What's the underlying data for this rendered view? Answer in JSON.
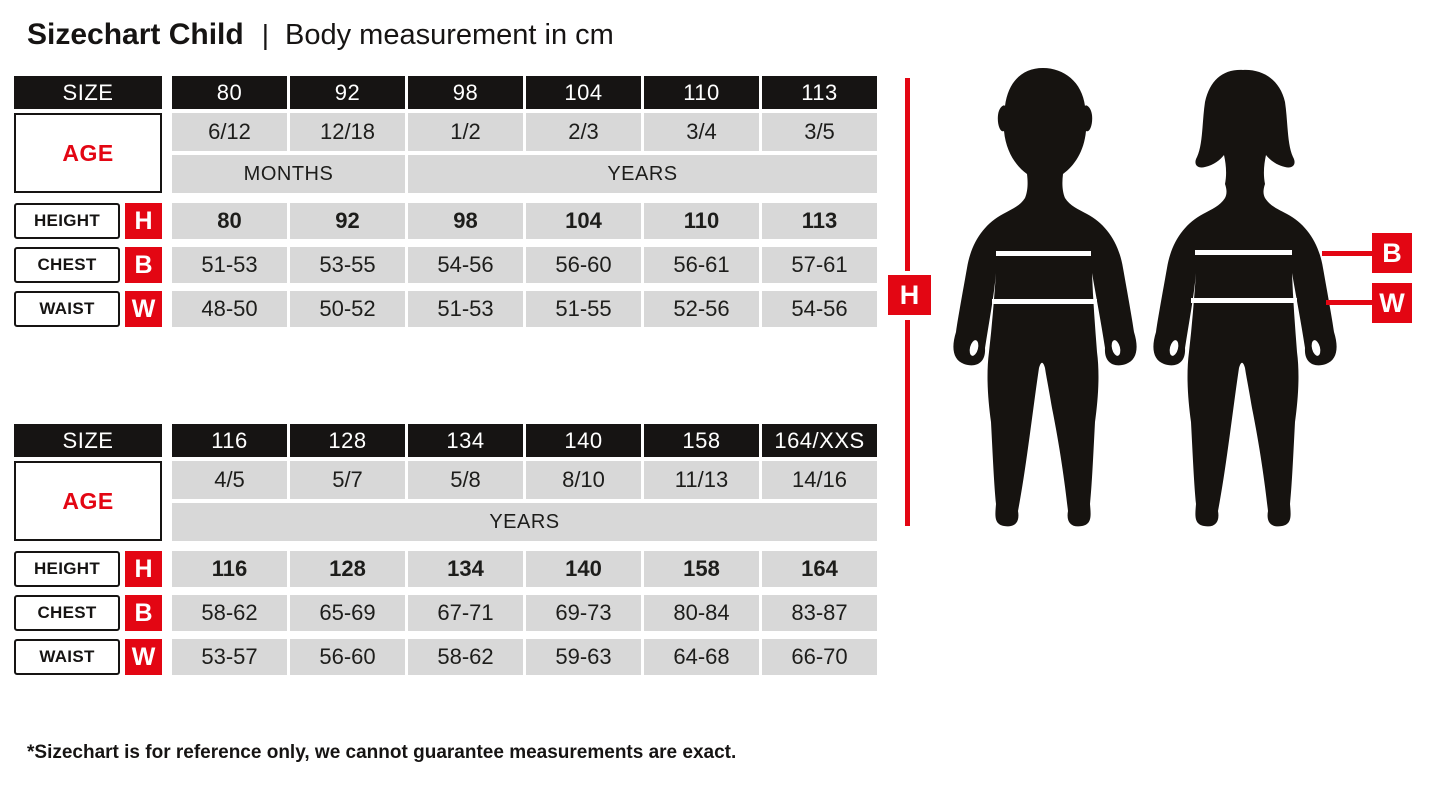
{
  "page": {
    "title": "Sizechart Child",
    "separator": "|",
    "subtitle": "Body measurement in cm",
    "footnote": "*Sizechart is for reference only, we cannot guarantee measurements are exact."
  },
  "colors": {
    "accent_red": "#e30613",
    "header_black": "#161413",
    "cell_gray": "#d8d8d8"
  },
  "tables": [
    {
      "size_label": "SIZE",
      "sizes": [
        "80",
        "92",
        "98",
        "104",
        "110",
        "113"
      ],
      "age_label": "AGE",
      "ages": [
        "6/12",
        "12/18",
        "1/2",
        "2/3",
        "3/4",
        "3/5"
      ],
      "age_units": [
        {
          "label": "MONTHS",
          "span": 2
        },
        {
          "label": "YEARS",
          "span": 4
        }
      ],
      "rows": [
        {
          "label": "HEIGHT",
          "badge": "H",
          "bold": true,
          "values": [
            "80",
            "92",
            "98",
            "104",
            "110",
            "113"
          ]
        },
        {
          "label": "CHEST",
          "badge": "B",
          "bold": false,
          "values": [
            "51-53",
            "53-55",
            "54-56",
            "56-60",
            "56-61",
            "57-61"
          ]
        },
        {
          "label": "WAIST",
          "badge": "W",
          "bold": false,
          "values": [
            "48-50",
            "50-52",
            "51-53",
            "51-55",
            "52-56",
            "54-56"
          ]
        }
      ]
    },
    {
      "size_label": "SIZE",
      "sizes": [
        "116",
        "128",
        "134",
        "140",
        "158",
        "164/XXS"
      ],
      "age_label": "AGE",
      "ages": [
        "4/5",
        "5/7",
        "5/8",
        "8/10",
        "11/13",
        "14/16"
      ],
      "age_units": [
        {
          "label": "YEARS",
          "span": 6
        }
      ],
      "rows": [
        {
          "label": "HEIGHT",
          "badge": "H",
          "bold": true,
          "values": [
            "116",
            "128",
            "134",
            "140",
            "158",
            "164"
          ]
        },
        {
          "label": "CHEST",
          "badge": "B",
          "bold": false,
          "values": [
            "58-62",
            "65-69",
            "67-71",
            "69-73",
            "80-84",
            "83-87"
          ]
        },
        {
          "label": "WAIST",
          "badge": "W",
          "bold": false,
          "values": [
            "53-57",
            "56-60",
            "58-62",
            "59-63",
            "64-68",
            "66-70"
          ]
        }
      ]
    }
  ],
  "figure": {
    "height_label": "H",
    "chest_label": "B",
    "waist_label": "W",
    "icons": [
      "boy-silhouette",
      "girl-silhouette"
    ]
  }
}
